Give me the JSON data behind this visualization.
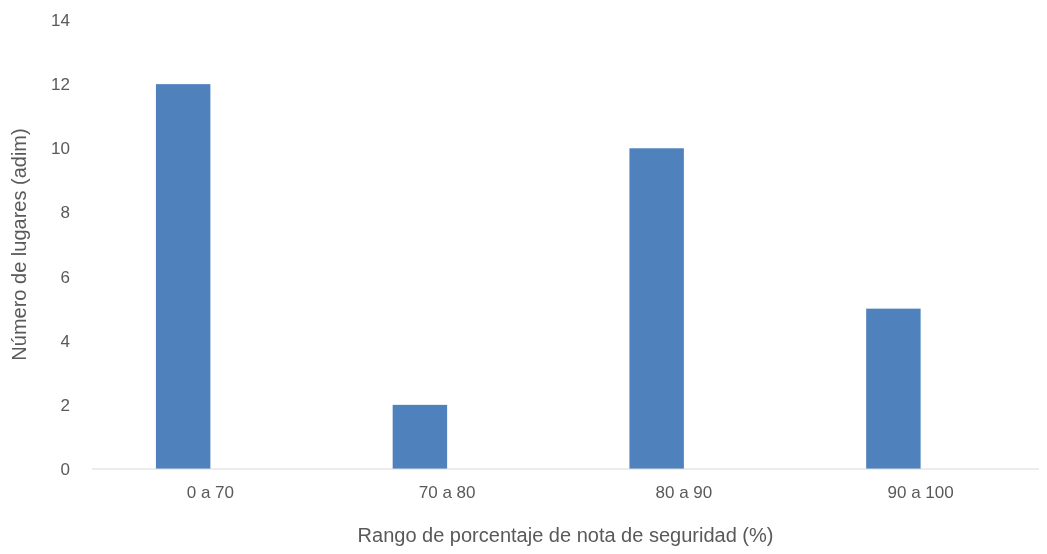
{
  "chart_data": {
    "type": "bar",
    "xlabel": "Rango de porcentaje de nota de seguridad (%)",
    "ylabel": "Número de lugares (adim)",
    "categories": [
      "0 a 70",
      "70 a 80",
      "80 a 90",
      "90 a 100"
    ],
    "values": [
      12,
      2,
      10,
      5
    ],
    "color": "#4f81bd",
    "ylim": [
      0,
      14
    ],
    "yticks": [
      0,
      2,
      4,
      6,
      8,
      10,
      12,
      14
    ],
    "grid": false
  }
}
